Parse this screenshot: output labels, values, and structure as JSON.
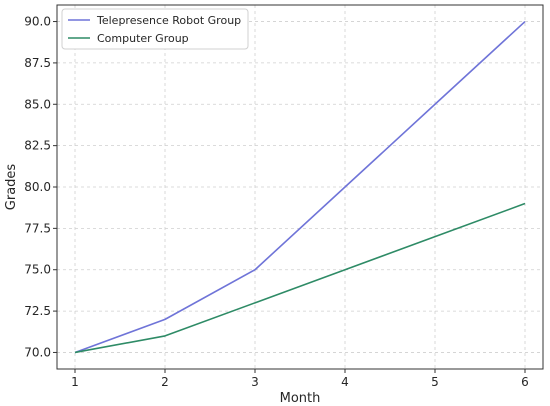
{
  "chart_data": {
    "type": "line",
    "x": [
      1,
      2,
      3,
      4,
      5,
      6
    ],
    "series": [
      {
        "name": "Telepresence Robot Group",
        "values": [
          70,
          72,
          75,
          80,
          85,
          90
        ],
        "color": "#6f74d8"
      },
      {
        "name": "Computer Group",
        "values": [
          70,
          71,
          73,
          75,
          77,
          79
        ],
        "color": "#2e8b66"
      }
    ],
    "title": "",
    "xlabel": "Month",
    "ylabel": "Grades",
    "xlim": [
      0.8,
      6.2
    ],
    "ylim": [
      69,
      91
    ],
    "xticks": [
      "1",
      "2",
      "3",
      "4",
      "5",
      "6"
    ],
    "yticks": [
      "70.0",
      "72.5",
      "75.0",
      "77.5",
      "80.0",
      "82.5",
      "85.0",
      "87.5",
      "90.0"
    ],
    "grid": true,
    "legend": "top-left"
  }
}
